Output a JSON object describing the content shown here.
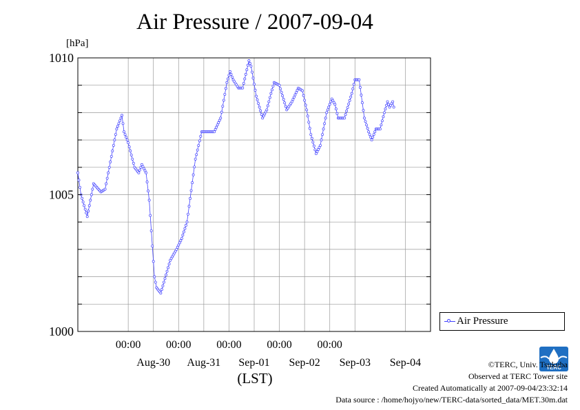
{
  "title": "Air Pressure / 2007-09-04",
  "unit_label": "[hPa]",
  "xlabel": "(LST)",
  "legend_label": "Air Pressure",
  "colors": {
    "series": "#4040ff",
    "grid": "#999999"
  },
  "footer": {
    "copyright": "©TERC, Univ. Tsukuba",
    "observed": "Observed at TERC Tower site",
    "created": "Created Automatically at 2007-09-04/23:32:14",
    "source": "Data source : /home/hojyo/new/TERC-data/sorted_data/MET.30m.dat"
  },
  "logo_text": "TERC",
  "chart_data": {
    "type": "line",
    "title": "Air Pressure / 2007-09-04",
    "ylabel": "[hPa]",
    "xlabel": "(LST)",
    "ylim": [
      1000,
      1010
    ],
    "y_tick_labels": [
      "1000",
      "1005",
      "1010"
    ],
    "y_ticks": [
      1000,
      1005,
      1010
    ],
    "y_gridlines": [
      1000,
      1001,
      1002,
      1003,
      1004,
      1005,
      1006,
      1007,
      1008,
      1009,
      1010
    ],
    "xlim": [
      "2007-08-29 00:00",
      "2007-09-05 00:00"
    ],
    "x_time_ticks": [
      "00:00",
      "00:00",
      "00:00",
      "00:00",
      "00:00"
    ],
    "x_tick_times": [
      "2007-08-30 00:00",
      "2007-08-31 00:00",
      "2007-09-01 00:00",
      "2007-09-02 00:00",
      "2007-09-03 00:00"
    ],
    "x_date_labels": [
      "Aug-30",
      "Aug-31",
      "Sep-01",
      "Sep-02",
      "Sep-03",
      "Sep-04"
    ],
    "x_date_positions": [
      "2007-08-30 12:00",
      "2007-08-31 12:00",
      "2007-09-01 12:00",
      "2007-09-02 12:00",
      "2007-09-03 12:00",
      "2007-09-04 12:00"
    ],
    "grid": true,
    "legend_position": "bottom-right, outside plot",
    "series": [
      {
        "name": "Air Pressure",
        "anchors": [
          [
            "2007-08-29 00:00",
            1005.8
          ],
          [
            "2007-08-29 01:30",
            1005.0
          ],
          [
            "2007-08-29 04:30",
            1004.2
          ],
          [
            "2007-08-29 07:30",
            1005.4
          ],
          [
            "2007-08-29 11:00",
            1005.1
          ],
          [
            "2007-08-29 13:00",
            1005.2
          ],
          [
            "2007-08-29 16:00",
            1006.4
          ],
          [
            "2007-08-29 18:30",
            1007.4
          ],
          [
            "2007-08-29 21:00",
            1007.9
          ],
          [
            "2007-08-29 22:00",
            1007.3
          ],
          [
            "2007-08-30 00:00",
            1006.9
          ],
          [
            "2007-08-30 03:00",
            1006.0
          ],
          [
            "2007-08-30 05:00",
            1005.8
          ],
          [
            "2007-08-30 06:30",
            1006.1
          ],
          [
            "2007-08-30 08:30",
            1005.8
          ],
          [
            "2007-08-30 10:00",
            1004.8
          ],
          [
            "2007-08-30 12:30",
            1002.0
          ],
          [
            "2007-08-30 13:30",
            1001.6
          ],
          [
            "2007-08-30 15:30",
            1001.4
          ],
          [
            "2007-08-30 17:00",
            1001.8
          ],
          [
            "2007-08-30 20:00",
            1002.6
          ],
          [
            "2007-08-30 23:00",
            1003.0
          ],
          [
            "2007-08-31 01:30",
            1003.4
          ],
          [
            "2007-08-31 04:00",
            1004.0
          ],
          [
            "2007-08-31 08:00",
            1006.3
          ],
          [
            "2007-08-31 11:00",
            1007.3
          ],
          [
            "2007-08-31 14:00",
            1007.3
          ],
          [
            "2007-08-31 17:00",
            1007.3
          ],
          [
            "2007-08-31 20:00",
            1007.8
          ],
          [
            "2007-08-31 23:00",
            1009.1
          ],
          [
            "2007-09-01 00:30",
            1009.5
          ],
          [
            "2007-09-01 02:00",
            1009.2
          ],
          [
            "2007-09-01 04:30",
            1008.9
          ],
          [
            "2007-09-01 06:30",
            1008.9
          ],
          [
            "2007-09-01 09:30",
            1009.9
          ],
          [
            "2007-09-01 10:30",
            1009.7
          ],
          [
            "2007-09-01 13:00",
            1008.6
          ],
          [
            "2007-09-01 16:00",
            1007.8
          ],
          [
            "2007-09-01 18:00",
            1008.1
          ],
          [
            "2007-09-01 20:00",
            1008.7
          ],
          [
            "2007-09-01 21:30",
            1009.1
          ],
          [
            "2007-09-02 00:00",
            1009.0
          ],
          [
            "2007-09-02 03:30",
            1008.1
          ],
          [
            "2007-09-02 06:00",
            1008.4
          ],
          [
            "2007-09-02 09:00",
            1008.9
          ],
          [
            "2007-09-02 11:00",
            1008.8
          ],
          [
            "2007-09-02 13:00",
            1008.1
          ],
          [
            "2007-09-02 15:00",
            1007.2
          ],
          [
            "2007-09-02 17:30",
            1006.5
          ],
          [
            "2007-09-02 19:30",
            1006.8
          ],
          [
            "2007-09-02 22:30",
            1008.0
          ],
          [
            "2007-09-03 01:00",
            1008.5
          ],
          [
            "2007-09-03 02:30",
            1008.3
          ],
          [
            "2007-09-03 04:00",
            1007.8
          ],
          [
            "2007-09-03 07:00",
            1007.8
          ],
          [
            "2007-09-03 10:30",
            1008.7
          ],
          [
            "2007-09-03 12:00",
            1009.2
          ],
          [
            "2007-09-03 14:00",
            1009.2
          ],
          [
            "2007-09-03 16:30",
            1007.8
          ],
          [
            "2007-09-03 18:30",
            1007.3
          ],
          [
            "2007-09-03 20:00",
            1007.0
          ],
          [
            "2007-09-03 22:00",
            1007.4
          ],
          [
            "2007-09-04 00:00",
            1007.4
          ],
          [
            "2007-09-04 02:00",
            1008.0
          ],
          [
            "2007-09-04 03:30",
            1008.4
          ],
          [
            "2007-09-04 04:30",
            1008.2
          ],
          [
            "2007-09-04 06:00",
            1008.4
          ],
          [
            "2007-09-04 06:30",
            1008.2
          ]
        ]
      }
    ]
  }
}
